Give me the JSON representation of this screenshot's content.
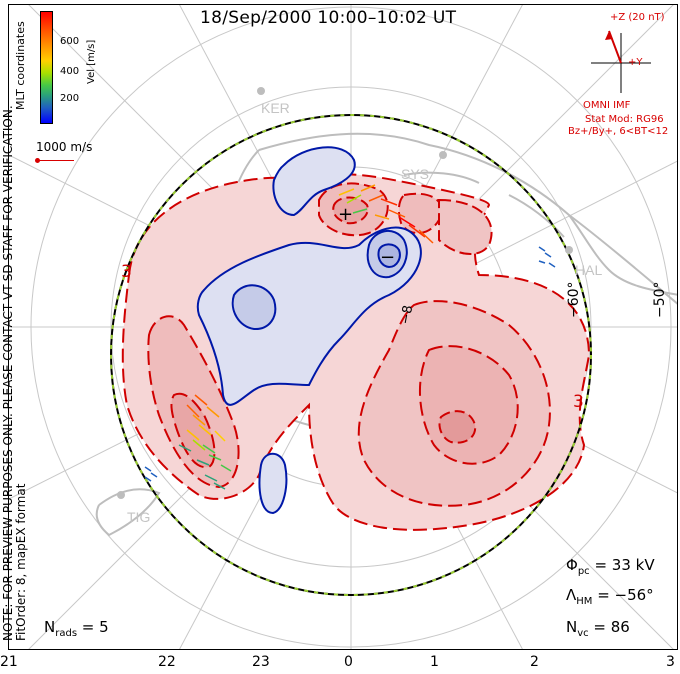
{
  "title": "18/Sep/2000 10:00–10:02 UT",
  "notice": "NOTE: FOR PREVIEW PURPOSES ONLY. PLEASE CONTACT VT-SD STAFF FOR VERIFICATION.",
  "fit_order": "FitOrder: 8, mapEX format",
  "coordinates_label": "MLT coordinates",
  "colorbar": {
    "label": "Vel [m/s]",
    "ticks": [
      "600",
      "400",
      "200"
    ]
  },
  "reference_vector_label": "1000 m/s",
  "imf": {
    "scale_label": "+Z (20 nT)",
    "y_label": "+Y",
    "source": "OMNI IMF",
    "model": "Stat Mod: RG96",
    "condition": "Bz+/By+, 6<BT<12"
  },
  "stats": {
    "phi_pc": "33 kV",
    "lambda_hm": "−56°",
    "n_vc": "86",
    "n_rads": "5"
  },
  "mlt_ticks": [
    "21",
    "22",
    "23",
    "0",
    "1",
    "2",
    "3"
  ],
  "latitude_labels": [
    "−60°",
    "−50°"
  ],
  "contour_labels": [
    "3",
    "−8",
    "3"
  ],
  "extrema": {
    "max": "+",
    "min": "−"
  },
  "stations": [
    "KER",
    "SYS",
    "HAL",
    "TIG"
  ],
  "colors": {
    "positive_contour": "#d00000",
    "positive_fill": "#f6d6d6",
    "negative_contour": "#0018a8",
    "negative_fill": "#dde0f2",
    "boundary": "#000000",
    "boundary_dash": "#9acd32",
    "coastline": "#bdbdbd",
    "grid": "#c8c8c8"
  }
}
